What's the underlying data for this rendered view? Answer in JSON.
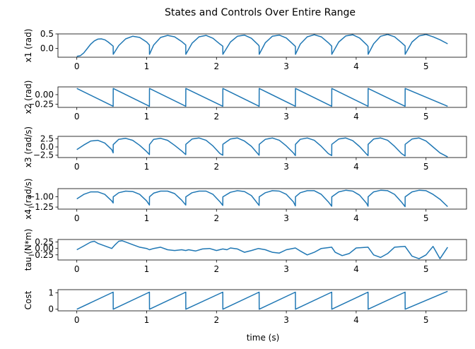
{
  "figure": {
    "title": "States and Controls Over Entire Range",
    "xlabel": "time (s)",
    "line_color": "#1f77b4"
  },
  "chart_data": [
    {
      "type": "line",
      "ylabel": "x1 (rad)",
      "xlim": [
        -0.27,
        5.58
      ],
      "ylim": [
        -0.3,
        0.5
      ],
      "yticks": [
        0.0,
        0.5
      ],
      "ytick_labels": [
        "0.0",
        "0.5"
      ],
      "xticks": [
        0,
        1,
        2,
        3,
        4,
        5
      ],
      "xtick_labels": [
        "0",
        "1",
        "2",
        "3",
        "4",
        "5"
      ],
      "grid": false,
      "series": [
        {
          "x": [
            0,
            0.05,
            0.1,
            0.15,
            0.2,
            0.25,
            0.3,
            0.35,
            0.4,
            0.45,
            0.5,
            0.52,
            0.521,
            0.6,
            0.7,
            0.8,
            0.9,
            1.0,
            1.04,
            1.041,
            1.1,
            1.2,
            1.3,
            1.4,
            1.5,
            1.56,
            1.561,
            1.65,
            1.75,
            1.85,
            1.95,
            2.05,
            2.09,
            2.091,
            2.2,
            2.3,
            2.4,
            2.5,
            2.6,
            2.61,
            2.611,
            2.7,
            2.8,
            2.9,
            3.0,
            3.1,
            3.13,
            3.131,
            3.2,
            3.3,
            3.4,
            3.5,
            3.6,
            3.65,
            3.651,
            3.75,
            3.85,
            3.95,
            4.05,
            4.15,
            4.17,
            4.171,
            4.25,
            4.35,
            4.45,
            4.55,
            4.65,
            4.7,
            4.701,
            4.8,
            4.9,
            5.0,
            5.1,
            5.2,
            5.31
          ],
          "y": [
            -0.27,
            -0.25,
            -0.15,
            0.0,
            0.15,
            0.26,
            0.32,
            0.33,
            0.3,
            0.22,
            0.12,
            0.08,
            -0.2,
            0.1,
            0.33,
            0.42,
            0.38,
            0.22,
            0.12,
            -0.2,
            0.12,
            0.38,
            0.45,
            0.4,
            0.24,
            0.12,
            -0.2,
            0.18,
            0.4,
            0.45,
            0.35,
            0.15,
            0.08,
            -0.2,
            0.22,
            0.42,
            0.46,
            0.35,
            0.12,
            0.08,
            -0.2,
            0.2,
            0.42,
            0.46,
            0.36,
            0.14,
            0.07,
            -0.2,
            0.15,
            0.4,
            0.47,
            0.4,
            0.2,
            0.08,
            -0.2,
            0.22,
            0.43,
            0.47,
            0.36,
            0.13,
            0.07,
            -0.2,
            0.16,
            0.42,
            0.48,
            0.4,
            0.2,
            0.09,
            -0.2,
            0.22,
            0.43,
            0.48,
            0.4,
            0.3,
            0.16
          ]
        }
      ]
    },
    {
      "type": "line",
      "ylabel": "x2 (rad)",
      "xlim": [
        -0.27,
        5.58
      ],
      "ylim": [
        -0.33,
        0.2
      ],
      "yticks": [
        0.0,
        -0.25
      ],
      "ytick_labels": [
        "0.00",
        "−0.25"
      ],
      "xticks": [
        0,
        1,
        2,
        3,
        4,
        5
      ],
      "xtick_labels": [
        "0",
        "1",
        "2",
        "3",
        "4",
        "5"
      ],
      "grid": false,
      "series": [
        {
          "x": [
            0,
            0.52,
            0.521,
            1.04,
            1.041,
            1.56,
            1.561,
            2.09,
            2.091,
            2.61,
            2.611,
            3.13,
            3.131,
            3.65,
            3.651,
            4.17,
            4.171,
            4.7,
            4.701,
            5.31
          ],
          "y": [
            0.16,
            -0.3,
            0.16,
            -0.3,
            0.16,
            -0.3,
            0.16,
            -0.3,
            0.16,
            -0.3,
            0.16,
            -0.3,
            0.16,
            -0.3,
            0.16,
            -0.3,
            0.16,
            -0.3,
            0.16,
            -0.3
          ]
        }
      ]
    },
    {
      "type": "line",
      "ylabel": "x3 (rad/s)",
      "xlim": [
        -0.27,
        5.58
      ],
      "ylim": [
        -3.2,
        3.2
      ],
      "yticks": [
        2.5,
        0.0,
        -2.5
      ],
      "ytick_labels": [
        "2.5",
        "0.0",
        "−2.5"
      ],
      "xticks": [
        0,
        1,
        2,
        3,
        4,
        5
      ],
      "xtick_labels": [
        "0",
        "1",
        "2",
        "3",
        "4",
        "5"
      ],
      "grid": false,
      "series": [
        {
          "x": [
            0,
            0.1,
            0.2,
            0.3,
            0.4,
            0.5,
            0.52,
            0.521,
            0.6,
            0.7,
            0.8,
            0.9,
            1.0,
            1.04,
            1.041,
            1.1,
            1.2,
            1.3,
            1.4,
            1.5,
            1.56,
            1.561,
            1.65,
            1.75,
            1.85,
            1.95,
            2.05,
            2.09,
            2.091,
            2.2,
            2.3,
            2.4,
            2.5,
            2.61,
            2.611,
            2.7,
            2.8,
            2.9,
            3.0,
            3.1,
            3.13,
            3.131,
            3.2,
            3.3,
            3.4,
            3.5,
            3.6,
            3.65,
            3.651,
            3.75,
            3.85,
            3.95,
            4.05,
            4.15,
            4.17,
            4.171,
            4.25,
            4.35,
            4.45,
            4.55,
            4.65,
            4.7,
            4.701,
            4.8,
            4.9,
            5.0,
            5.1,
            5.2,
            5.31
          ],
          "y": [
            -0.8,
            0.6,
            1.8,
            2.0,
            1.2,
            -0.8,
            -1.8,
            0.7,
            2.3,
            2.6,
            2.0,
            0.5,
            -1.4,
            -2.3,
            0.7,
            2.3,
            2.6,
            2.0,
            0.5,
            -1.2,
            -2.3,
            0.8,
            2.4,
            2.7,
            2.0,
            0.3,
            -2.0,
            -2.5,
            0.8,
            2.4,
            2.7,
            1.8,
            0.2,
            -2.5,
            0.8,
            2.3,
            2.7,
            2.0,
            0.3,
            -1.8,
            -2.6,
            0.8,
            2.3,
            2.7,
            2.0,
            0.2,
            -2.0,
            -2.6,
            0.8,
            2.4,
            2.7,
            1.9,
            0.1,
            -2.2,
            -2.6,
            0.8,
            2.4,
            2.7,
            2.0,
            0.2,
            -2.0,
            -2.7,
            0.8,
            2.4,
            2.7,
            1.8,
            0.0,
            -1.8,
            -3.0
          ]
        }
      ]
    },
    {
      "type": "line",
      "ylabel": "x4 (rad/s)",
      "xlim": [
        -0.27,
        5.58
      ],
      "ylim": [
        -1.3,
        -0.8
      ],
      "yticks": [
        -1.0,
        -1.25
      ],
      "ytick_labels": [
        "−1.00",
        "−1.25"
      ],
      "xticks": [
        0,
        1,
        2,
        3,
        4,
        5
      ],
      "xtick_labels": [
        "0",
        "1",
        "2",
        "3",
        "4",
        "5"
      ],
      "grid": false,
      "series": [
        {
          "x": [
            0,
            0.1,
            0.2,
            0.3,
            0.4,
            0.5,
            0.52,
            0.521,
            0.6,
            0.7,
            0.8,
            0.9,
            1.0,
            1.04,
            1.041,
            1.1,
            1.2,
            1.3,
            1.4,
            1.5,
            1.56,
            1.561,
            1.65,
            1.75,
            1.85,
            1.95,
            2.05,
            2.09,
            2.091,
            2.2,
            2.3,
            2.4,
            2.5,
            2.61,
            2.611,
            2.7,
            2.8,
            2.9,
            3.0,
            3.1,
            3.13,
            3.131,
            3.2,
            3.3,
            3.4,
            3.5,
            3.6,
            3.65,
            3.651,
            3.75,
            3.85,
            3.95,
            4.05,
            4.15,
            4.17,
            4.171,
            4.25,
            4.35,
            4.45,
            4.55,
            4.65,
            4.7,
            4.701,
            4.8,
            4.9,
            5.0,
            5.1,
            5.2,
            5.31
          ],
          "y": [
            -1.05,
            -0.94,
            -0.88,
            -0.88,
            -0.94,
            -1.1,
            -1.15,
            -1.0,
            -0.9,
            -0.86,
            -0.87,
            -0.94,
            -1.1,
            -1.2,
            -1.0,
            -0.91,
            -0.86,
            -0.86,
            -0.92,
            -1.08,
            -1.2,
            -1.0,
            -0.9,
            -0.86,
            -0.86,
            -0.94,
            -1.12,
            -1.21,
            -1.0,
            -0.89,
            -0.85,
            -0.87,
            -0.97,
            -1.21,
            -1.0,
            -0.9,
            -0.85,
            -0.86,
            -0.94,
            -1.12,
            -1.22,
            -1.0,
            -0.9,
            -0.85,
            -0.85,
            -0.94,
            -1.12,
            -1.23,
            -1.0,
            -0.88,
            -0.84,
            -0.86,
            -0.96,
            -1.16,
            -1.23,
            -1.0,
            -0.88,
            -0.84,
            -0.85,
            -0.94,
            -1.13,
            -1.24,
            -1.0,
            -0.88,
            -0.84,
            -0.85,
            -0.94,
            -1.06,
            -1.24
          ]
        }
      ]
    },
    {
      "type": "line",
      "ylabel": "tau (N*m)",
      "xlim": [
        -0.27,
        5.58
      ],
      "ylim": [
        -0.45,
        0.35
      ],
      "yticks": [
        0.25,
        0.0,
        -0.25
      ],
      "ytick_labels": [
        "0.25",
        "0.00",
        "−0.25"
      ],
      "xticks": [
        0,
        1,
        2,
        3,
        4,
        5
      ],
      "xtick_labels": [
        "0",
        "1",
        "2",
        "3",
        "4",
        "5"
      ],
      "grid": false,
      "series": [
        {
          "x": [
            0,
            0.1,
            0.2,
            0.25,
            0.3,
            0.4,
            0.5,
            0.55,
            0.6,
            0.65,
            0.7,
            0.8,
            0.9,
            1.0,
            1.04,
            1.1,
            1.2,
            1.3,
            1.4,
            1.5,
            1.56,
            1.6,
            1.7,
            1.8,
            1.9,
            2.0,
            2.09,
            2.15,
            2.2,
            2.3,
            2.4,
            2.5,
            2.6,
            2.7,
            2.8,
            2.9,
            3.0,
            3.13,
            3.2,
            3.3,
            3.4,
            3.5,
            3.65,
            3.7,
            3.8,
            3.9,
            4.0,
            4.17,
            4.25,
            4.35,
            4.45,
            4.55,
            4.7,
            4.8,
            4.9,
            5.0,
            5.1,
            5.2,
            5.31
          ],
          "y": [
            -0.05,
            0.1,
            0.25,
            0.28,
            0.2,
            0.1,
            0.0,
            0.15,
            0.28,
            0.3,
            0.25,
            0.15,
            0.05,
            0.0,
            -0.05,
            0.0,
            0.05,
            -0.05,
            -0.08,
            -0.05,
            -0.08,
            -0.05,
            -0.1,
            -0.02,
            0.0,
            -0.08,
            -0.02,
            -0.05,
            0.02,
            -0.02,
            -0.15,
            -0.08,
            0.0,
            -0.05,
            -0.15,
            -0.18,
            -0.05,
            0.02,
            -0.1,
            -0.25,
            -0.15,
            0.0,
            0.05,
            -0.15,
            -0.28,
            -0.2,
            0.02,
            0.05,
            -0.25,
            -0.35,
            -0.2,
            0.05,
            0.08,
            -0.3,
            -0.4,
            -0.25,
            0.08,
            -0.4,
            0.05
          ]
        }
      ]
    },
    {
      "type": "line",
      "ylabel": "Cost",
      "xlim": [
        -0.27,
        5.58
      ],
      "ylim": [
        -0.1,
        1.2
      ],
      "yticks": [
        1,
        0
      ],
      "ytick_labels": [
        "1",
        "0"
      ],
      "xticks": [
        0,
        1,
        2,
        3,
        4,
        5
      ],
      "xtick_labels": [
        "0",
        "1",
        "2",
        "3",
        "4",
        "5"
      ],
      "grid": false,
      "series": [
        {
          "x": [
            0,
            0.52,
            0.521,
            1.04,
            1.041,
            1.56,
            1.561,
            2.09,
            2.091,
            2.61,
            2.611,
            3.13,
            3.131,
            3.65,
            3.651,
            4.17,
            4.171,
            4.7,
            4.701,
            5.31
          ],
          "y": [
            0.0,
            1.05,
            0.0,
            1.05,
            0.0,
            1.05,
            0.0,
            1.05,
            0.0,
            1.05,
            0.0,
            1.05,
            0.0,
            1.05,
            0.0,
            1.05,
            0.0,
            1.05,
            0.0,
            1.1
          ]
        }
      ]
    }
  ]
}
